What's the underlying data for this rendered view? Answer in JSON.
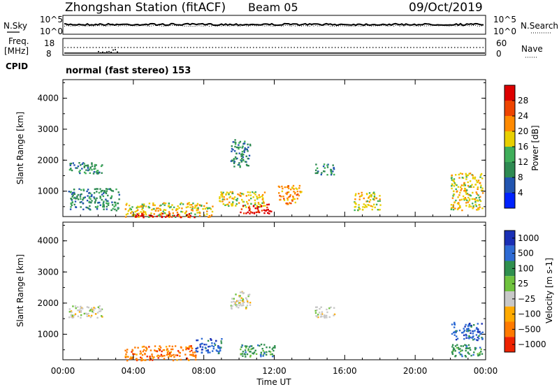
{
  "header": {
    "station": "Zhongshan Station (fitACF)",
    "beam": "Beam 05",
    "date": "09/Oct/2019"
  },
  "top_panels": {
    "nsky_label": "N.Sky",
    "nsky_ticks": [
      "10^5",
      "10^0"
    ],
    "nsearch_label": "N.Search",
    "freq_label_1": "Freq.",
    "freq_label_2": "[MHz]",
    "freq_ticks": [
      "18",
      "8"
    ],
    "nave_ticks": [
      "60",
      "0"
    ],
    "nave_label": "Nave",
    "cpid_label": "CPID",
    "cpid_value": "normal (fast stereo) 153"
  },
  "colors": {
    "power": [
      "#0022ff",
      "#2255b0",
      "#2e8a52",
      "#3fae5a",
      "#e8cf00",
      "#ff8a00",
      "#ee4400",
      "#dd0000"
    ],
    "velocity": [
      "#1a2fb5",
      "#2e6bd4",
      "#2f8f4e",
      "#6fc23e",
      "#c8c8c8",
      "#ffaa00",
      "#ff7a00",
      "#ee2200"
    ]
  },
  "chart_data": [
    {
      "type": "heatmap",
      "panel": "power",
      "ylabel": "Slant Range [km]",
      "xlabel": "",
      "yticks": [
        1000,
        2000,
        3000,
        4000
      ],
      "ylim": [
        180,
        4600
      ],
      "xlim": [
        0,
        24
      ],
      "colorbar_label": "Power [dB]",
      "colorbar_ticks": [
        "4",
        "8",
        "12",
        "16",
        "20",
        "24",
        "28"
      ],
      "echo_regions": [
        {
          "t": [
            0.3,
            2.2
          ],
          "range": [
            1550,
            1950
          ],
          "level": 2
        },
        {
          "t": [
            0.3,
            3.2
          ],
          "range": [
            400,
            1100
          ],
          "level": 2
        },
        {
          "t": [
            3.5,
            8.5
          ],
          "range": [
            180,
            650
          ],
          "level": 4
        },
        {
          "t": [
            4.0,
            7.5
          ],
          "range": [
            180,
            300
          ],
          "level": 7
        },
        {
          "t": [
            8.8,
            11.5
          ],
          "range": [
            500,
            1000
          ],
          "level": 4
        },
        {
          "t": [
            9.5,
            10.6
          ],
          "range": [
            1800,
            2700
          ],
          "level": 2
        },
        {
          "t": [
            10.0,
            11.8
          ],
          "range": [
            300,
            600
          ],
          "level": 7
        },
        {
          "t": [
            12.2,
            13.5
          ],
          "range": [
            600,
            1200
          ],
          "level": 5
        },
        {
          "t": [
            14.3,
            15.4
          ],
          "range": [
            1550,
            1900
          ],
          "level": 2
        },
        {
          "t": [
            16.5,
            18.0
          ],
          "range": [
            400,
            1000
          ],
          "level": 4
        },
        {
          "t": [
            22.0,
            23.8
          ],
          "range": [
            400,
            1600
          ],
          "level": 4
        }
      ]
    },
    {
      "type": "heatmap",
      "panel": "velocity",
      "ylabel": "Slant Range [km]",
      "xlabel": "Time UT",
      "yticks": [
        1000,
        2000,
        3000,
        4000
      ],
      "ylim": [
        180,
        4600
      ],
      "xlim": [
        0,
        24
      ],
      "xticks": [
        "00:00",
        "04:00",
        "08:00",
        "12:00",
        "16:00",
        "20:00",
        "00:00"
      ],
      "colorbar_label": "Velocity [m s-1]",
      "colorbar_ticks": [
        "1000",
        "500",
        "100",
        "25",
        "−25",
        "−100",
        "−500",
        "−1000"
      ],
      "echo_regions": [
        {
          "t": [
            0.3,
            2.2
          ],
          "range": [
            1550,
            1950
          ],
          "value": 0
        },
        {
          "t": [
            3.5,
            7.5
          ],
          "range": [
            180,
            650
          ],
          "value": -300
        },
        {
          "t": [
            7.5,
            9.0
          ],
          "range": [
            400,
            900
          ],
          "value": 600
        },
        {
          "t": [
            9.5,
            10.6
          ],
          "range": [
            1800,
            2400
          ],
          "value": 0
        },
        {
          "t": [
            10.0,
            12.0
          ],
          "range": [
            300,
            700
          ],
          "value": 300
        },
        {
          "t": [
            14.3,
            15.4
          ],
          "range": [
            1550,
            1900
          ],
          "value": 0
        },
        {
          "t": [
            22.0,
            23.8
          ],
          "range": [
            800,
            1400
          ],
          "value": 800
        },
        {
          "t": [
            22.0,
            23.8
          ],
          "range": [
            300,
            700
          ],
          "value": 150
        }
      ]
    }
  ]
}
